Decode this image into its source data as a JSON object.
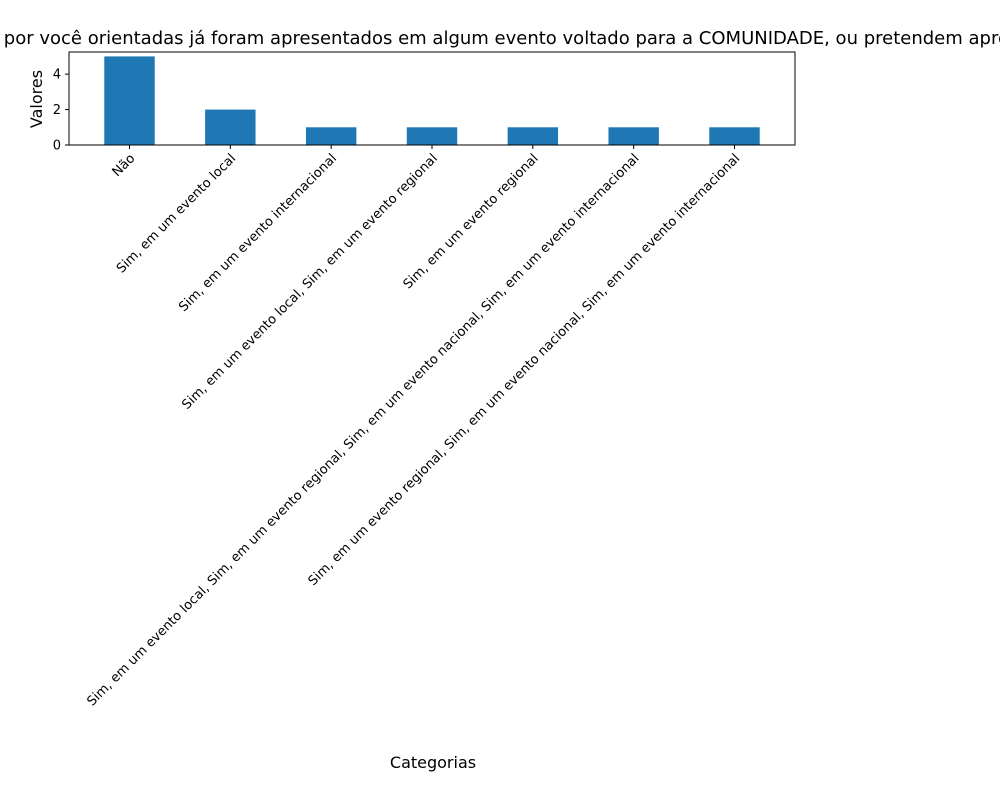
{
  "chart_data": {
    "type": "bar",
    "title": "Os trabalhos por você orientadas já foram apresentados em algum evento voltado para a COMUNIDADE, ou pretendem apresentar?",
    "xlabel": "Categorias",
    "ylabel": "Valores",
    "categories": [
      "Não",
      "Sim, em um evento local",
      "Sim, em um evento internacional",
      "Sim, em um evento local, Sim, em um evento regional",
      "Sim, em um evento regional",
      "Sim, em um evento local, Sim, em um evento regional, Sim, em um evento nacional, Sim, em um evento internacional",
      "Sim, em um evento regional, Sim, em um evento nacional, Sim, em um evento internacional"
    ],
    "values": [
      5,
      2,
      1,
      1,
      1,
      1,
      1
    ],
    "ylim": [
      0,
      5.25
    ],
    "yticks": [
      0,
      2,
      4
    ],
    "grid": false,
    "legend": "none",
    "colors": {
      "bar": "#1f77b4",
      "axis": "#000000",
      "background": "#ffffff"
    }
  }
}
